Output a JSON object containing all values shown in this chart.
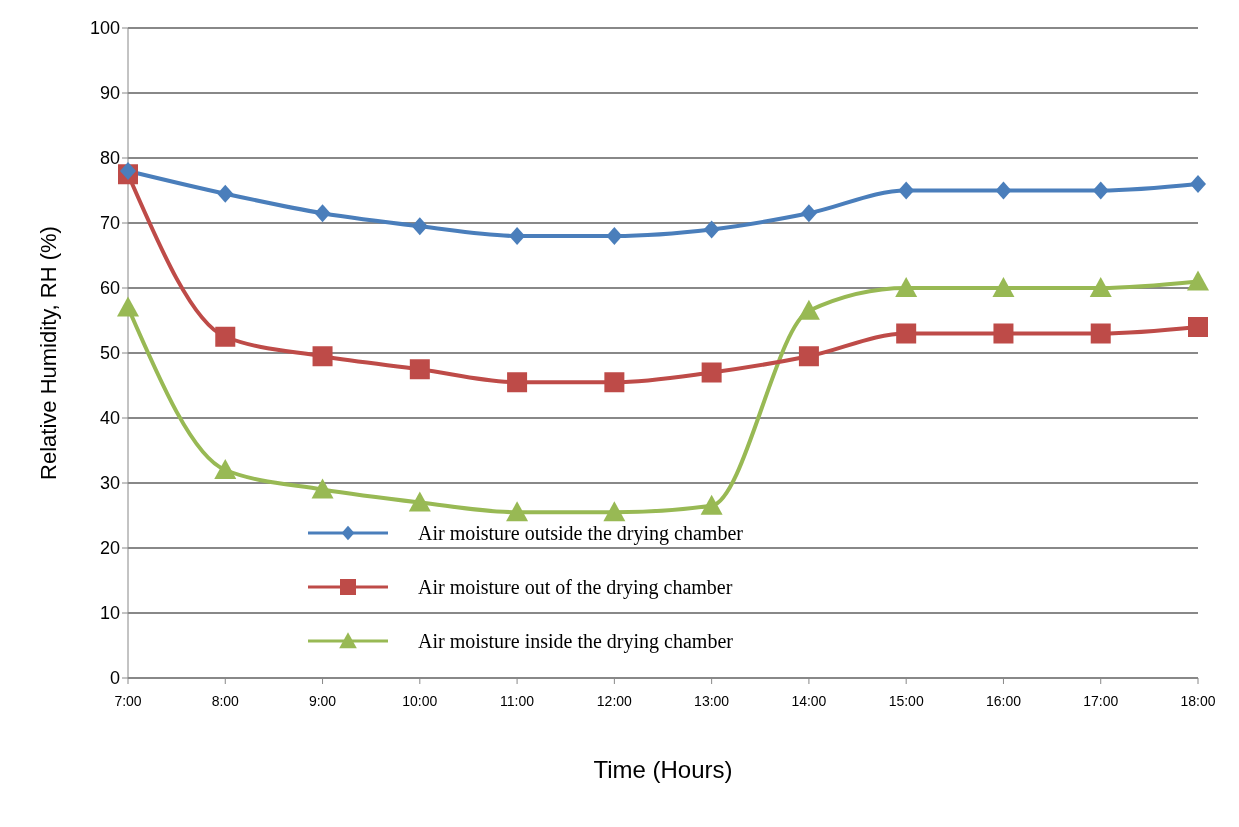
{
  "chart_data": {
    "type": "line",
    "xlabel": "Time (Hours)",
    "ylabel": "Relative Humidity, RH (%)",
    "categories": [
      "7:00",
      "8:00",
      "9:00",
      "10:00",
      "11:00",
      "12:00",
      "13:00",
      "14:00",
      "15:00",
      "16:00",
      "17:00",
      "18:00"
    ],
    "series": [
      {
        "name": "Air moisture outside the drying chamber",
        "color": "#4a7ebb",
        "marker": "diamond",
        "values": [
          78,
          74.5,
          71.5,
          69.5,
          68,
          68,
          69,
          71.5,
          75,
          75,
          75,
          76
        ]
      },
      {
        "name": "Air moisture out of the drying chamber",
        "color": "#be4b48",
        "marker": "square",
        "values": [
          77.5,
          52.5,
          49.5,
          47.5,
          45.5,
          45.5,
          47,
          49.5,
          53,
          53,
          53,
          54
        ]
      },
      {
        "name": "Air moisture inside the drying chamber",
        "color": "#98b954",
        "marker": "triangle",
        "values": [
          57,
          32,
          29,
          27,
          25.5,
          25.5,
          26.5,
          56.5,
          60,
          60,
          60,
          61
        ]
      }
    ],
    "ylim": [
      0,
      100
    ],
    "yticks": [
      0,
      10,
      20,
      30,
      40,
      50,
      60,
      70,
      80,
      90,
      100
    ],
    "grid": "y",
    "legend": "bottom",
    "line_style": "solid"
  }
}
